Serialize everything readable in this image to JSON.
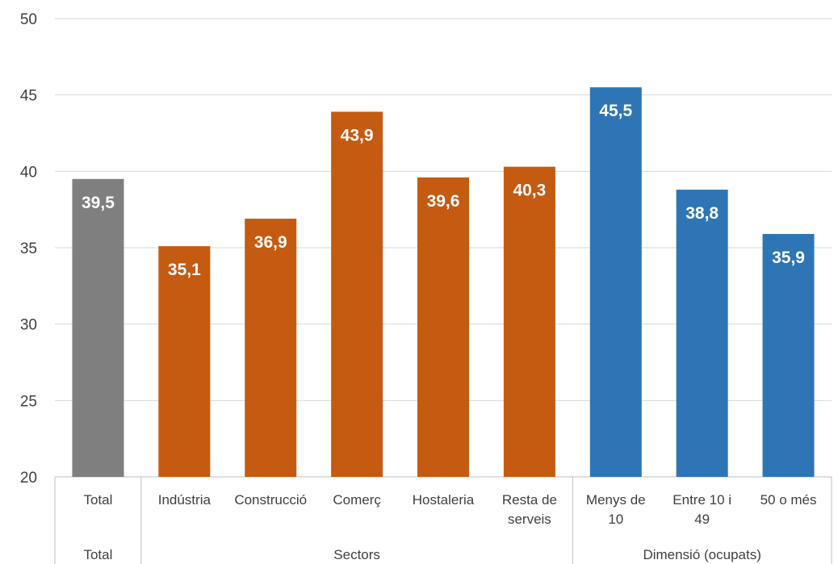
{
  "chart_data": {
    "type": "bar",
    "ylim": [
      20,
      50
    ],
    "yticks": [
      20,
      25,
      30,
      35,
      40,
      45,
      50
    ],
    "ytick_labels": [
      "20",
      "25",
      "30",
      "35",
      "40",
      "45",
      "50"
    ],
    "grid": true,
    "bars": [
      {
        "category": [
          "Total"
        ],
        "value": 39.5,
        "label": "39,5",
        "color": "#7f7f7f"
      },
      {
        "category": [
          "Indústria"
        ],
        "value": 35.1,
        "label": "35,1",
        "color": "#c55a11"
      },
      {
        "category": [
          "Construcció"
        ],
        "value": 36.9,
        "label": "36,9",
        "color": "#c55a11"
      },
      {
        "category": [
          "Comerç"
        ],
        "value": 43.9,
        "label": "43,9",
        "color": "#c55a11"
      },
      {
        "category": [
          "Hostaleria"
        ],
        "value": 39.6,
        "label": "39,6",
        "color": "#c55a11"
      },
      {
        "category": [
          "Resta de",
          "serveis"
        ],
        "value": 40.3,
        "label": "40,3",
        "color": "#c55a11"
      },
      {
        "category": [
          "Menys de",
          "10"
        ],
        "value": 45.5,
        "label": "45,5",
        "color": "#2e75b6"
      },
      {
        "category": [
          "Entre 10 i",
          "49"
        ],
        "value": 38.8,
        "label": "38,8",
        "color": "#2e75b6"
      },
      {
        "category": [
          "50 o més"
        ],
        "value": 35.9,
        "label": "35,9",
        "color": "#2e75b6"
      }
    ],
    "groups": [
      {
        "name": "Total",
        "start": 0,
        "end": 0
      },
      {
        "name": "Sectors",
        "start": 1,
        "end": 5
      },
      {
        "name": "Dimensió (ocupats)",
        "start": 6,
        "end": 8
      }
    ]
  }
}
